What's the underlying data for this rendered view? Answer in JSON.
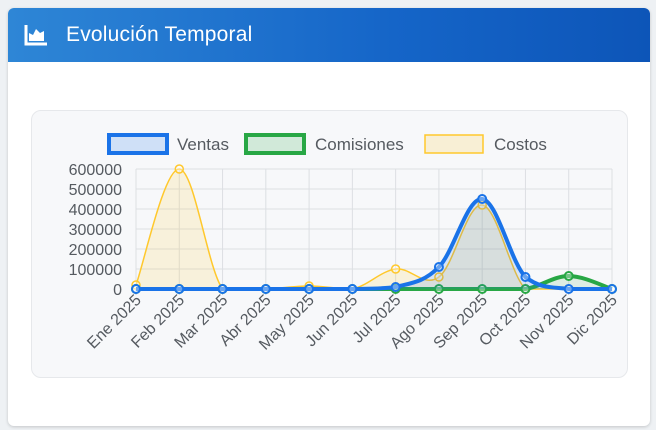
{
  "header": {
    "title": "Evolución Temporal",
    "icon": "area-chart-icon"
  },
  "colors": {
    "header_bg": "#1f73cf",
    "ventas": "#1a73e8",
    "comisiones": "#28a745",
    "costos": "#ffc82c"
  },
  "chart_data": {
    "type": "line",
    "categories": [
      "Ene 2025",
      "Feb 2025",
      "Mar 2025",
      "Abr 2025",
      "May 2025",
      "Jun 2025",
      "Jul 2025",
      "Ago 2025",
      "Sep 2025",
      "Oct 2025",
      "Nov 2025",
      "Dic 2025"
    ],
    "series": [
      {
        "name": "Ventas",
        "values": [
          0,
          0,
          0,
          0,
          0,
          0,
          10000,
          110000,
          450000,
          60000,
          0,
          0
        ]
      },
      {
        "name": "Comisiones",
        "values": [
          0,
          0,
          0,
          0,
          0,
          0,
          0,
          0,
          0,
          0,
          65000,
          0
        ]
      },
      {
        "name": "Costos",
        "values": [
          20000,
          600000,
          0,
          0,
          15000,
          0,
          100000,
          60000,
          420000,
          0,
          0,
          0
        ]
      }
    ],
    "ylim": [
      0,
      600000
    ],
    "yticks": [
      "600000",
      "500000",
      "400000",
      "300000",
      "200000",
      "100000",
      "0"
    ],
    "grid": true,
    "legend": "top",
    "area_fill": true,
    "smooth": true
  }
}
